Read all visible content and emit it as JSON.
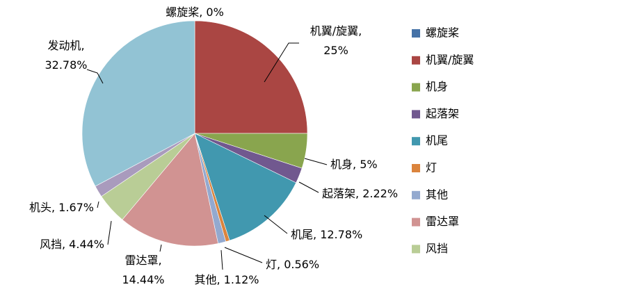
{
  "chart_data": {
    "type": "pie",
    "categories": [
      "螺旋桨",
      "机翼/旋翼",
      "机身",
      "起落架",
      "机尾",
      "灯",
      "其他",
      "雷达罩",
      "风挡",
      "机头",
      "发动机"
    ],
    "values": [
      0,
      25,
      5,
      2.22,
      12.78,
      0.56,
      1.12,
      14.44,
      4.44,
      1.67,
      32.78
    ],
    "value_labels": [
      "0%",
      "25%",
      "5%",
      "2.22%",
      "12.78%",
      "0.56%",
      "1.12%",
      "14.44%",
      "4.44%",
      "1.67%",
      "32.78%"
    ],
    "colors": [
      "#4572a7",
      "#aa4643",
      "#89a54e",
      "#71588f",
      "#4198af",
      "#db843d",
      "#93a9cf",
      "#d19392",
      "#b9cd96",
      "#a99bbd",
      "#92c3d4"
    ],
    "legend": "right"
  }
}
